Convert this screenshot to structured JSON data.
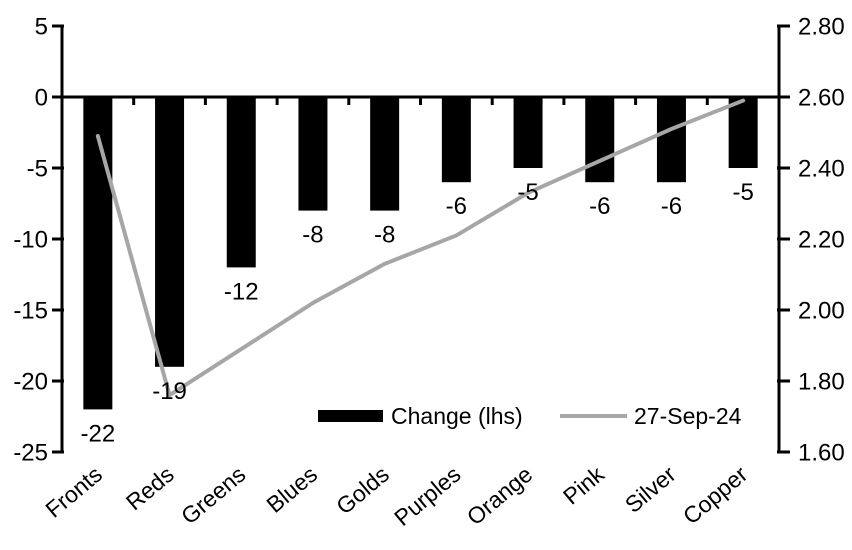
{
  "chart_data": {
    "type": "combo-bar-line-dual-axis",
    "title": "",
    "background": "#ffffff",
    "axis_color": "#000000",
    "grid": false,
    "categories": [
      "Fronts",
      "Reds",
      "Greens",
      "Blues",
      "Golds",
      "Purples",
      "Orange",
      "Pink",
      "Silver",
      "Copper"
    ],
    "series": [
      {
        "name": "Change (lhs)",
        "type": "bar",
        "axis": "left",
        "color": "#000000",
        "values": [
          -22,
          -19,
          -12,
          -8,
          -8,
          -6,
          -5,
          -6,
          -6,
          -5
        ],
        "data_labels": [
          "-22",
          "-19",
          "-12",
          "-8",
          "-8",
          "-6",
          "-5",
          "-6",
          "-6",
          "-5"
        ]
      },
      {
        "name": "27-Sep-24",
        "type": "line",
        "axis": "right",
        "color": "#a6a6a6",
        "values": [
          2.49,
          1.76,
          1.89,
          2.02,
          2.13,
          2.21,
          2.33,
          2.42,
          2.51,
          2.59
        ]
      }
    ],
    "left_axis": {
      "min": -25,
      "max": 5,
      "tick_values": [
        5,
        0,
        -5,
        -10,
        -15,
        -20,
        -25
      ],
      "tick_labels": [
        "5",
        "0",
        "-5",
        "-10",
        "-15",
        "-20",
        "-25"
      ]
    },
    "right_axis": {
      "min": 1.6,
      "max": 2.8,
      "tick_values": [
        2.8,
        2.6,
        2.4,
        2.2,
        2.0,
        1.8,
        1.6
      ],
      "tick_labels": [
        "2.80",
        "2.60",
        "2.40",
        "2.20",
        "2.00",
        "1.80",
        "1.60"
      ]
    },
    "legend": {
      "position": "bottom-center-inside",
      "items": [
        {
          "label": "Change (lhs)",
          "swatch": "bar",
          "color": "#000000"
        },
        {
          "label": "27-Sep-24",
          "swatch": "line",
          "color": "#a6a6a6"
        }
      ]
    }
  }
}
